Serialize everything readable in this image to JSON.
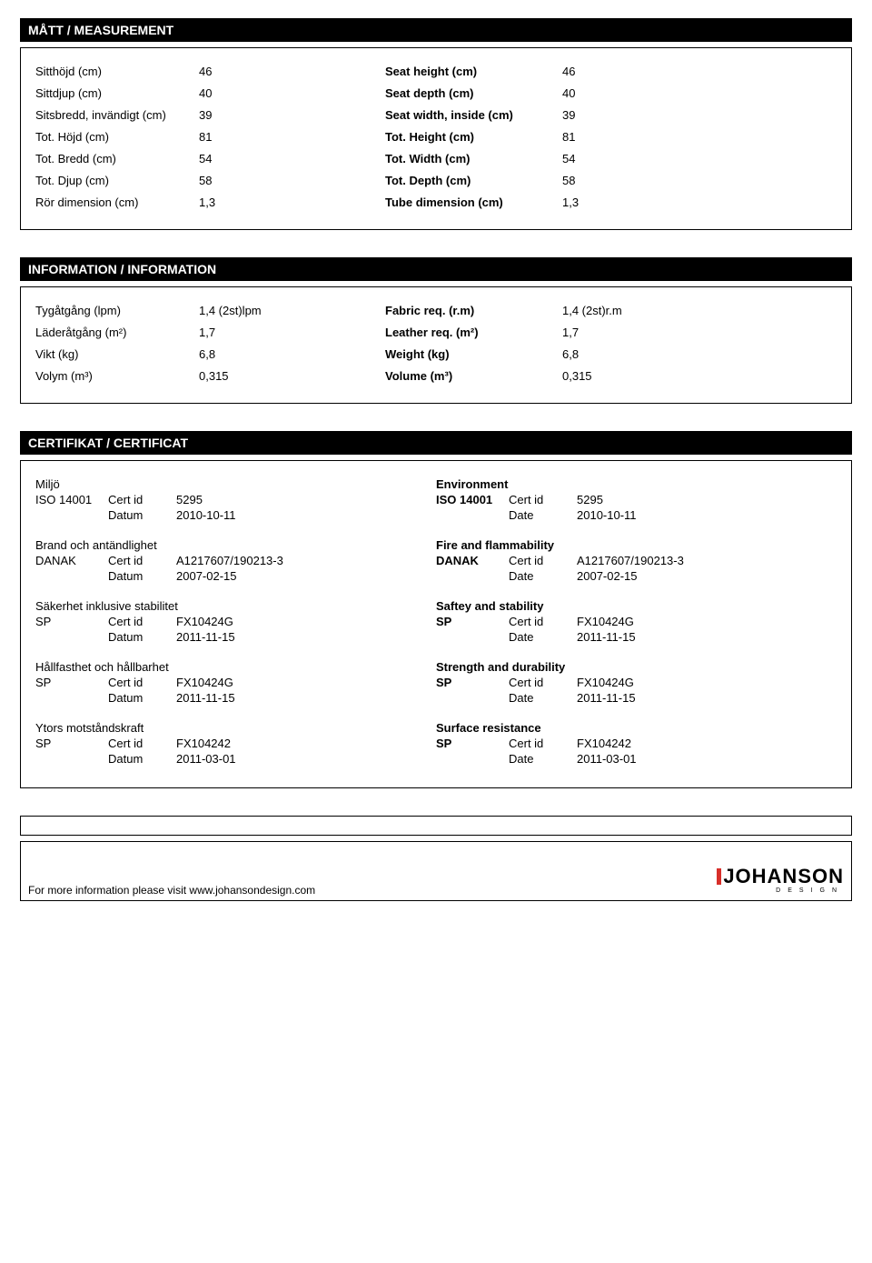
{
  "sections": {
    "measurement_title": "MÅTT / MEASUREMENT",
    "information_title": "INFORMATION / INFORMATION",
    "certificate_title": "CERTIFIKAT / CERTIFICAT"
  },
  "measurements": [
    {
      "sv": "Sitthöjd (cm)",
      "sv_val": "46",
      "en": "Seat height (cm)",
      "en_val": "46"
    },
    {
      "sv": "Sittdjup (cm)",
      "sv_val": "40",
      "en": "Seat depth (cm)",
      "en_val": "40"
    },
    {
      "sv": "Sitsbredd, invändigt (cm)",
      "sv_val": "39",
      "en": "Seat width, inside (cm)",
      "en_val": "39"
    },
    {
      "sv": "Tot. Höjd (cm)",
      "sv_val": "81",
      "en": "Tot. Height (cm)",
      "en_val": "81"
    },
    {
      "sv": "Tot. Bredd (cm)",
      "sv_val": "54",
      "en": "Tot. Width (cm)",
      "en_val": "54"
    },
    {
      "sv": "Tot. Djup (cm)",
      "sv_val": "58",
      "en": "Tot. Depth (cm)",
      "en_val": "58"
    },
    {
      "sv": "Rör dimension (cm)",
      "sv_val": "1,3",
      "en": "Tube dimension (cm)",
      "en_val": "1,3"
    }
  ],
  "information": [
    {
      "sv": "Tygåtgång (lpm)",
      "sv_val": "1,4 (2st)lpm",
      "en": "Fabric req. (r.m)",
      "en_val": "1,4 (2st)r.m"
    },
    {
      "sv": "Läderåtgång (m²)",
      "sv_val": "1,7",
      "en": "Leather req. (m²)",
      "en_val": "1,7"
    },
    {
      "sv": "Vikt (kg)",
      "sv_val": "6,8",
      "en": "Weight (kg)",
      "en_val": "6,8"
    },
    {
      "sv": "Volym (m³)",
      "sv_val": "0,315",
      "en": "Volume (m³)",
      "en_val": "0,315"
    }
  ],
  "cert_labels": {
    "cert_id": "Cert id",
    "datum": "Datum",
    "date": "Date"
  },
  "cert_sv": [
    {
      "title": "Miljö",
      "org": "ISO 14001",
      "cert": "5295",
      "date": "2010-10-11"
    },
    {
      "title": "Brand och antändlighet",
      "org": "DANAK",
      "cert": "A1217607/190213-3",
      "date": "2007-02-15"
    },
    {
      "title": "Säkerhet inklusive stabilitet",
      "org": "SP",
      "cert": "FX10424G",
      "date": "2011-11-15"
    },
    {
      "title": "Hållfasthet och hållbarhet",
      "org": "SP",
      "cert": "FX10424G",
      "date": "2011-11-15"
    },
    {
      "title": "Ytors motståndskraft",
      "org": "SP",
      "cert": "FX104242",
      "date": "2011-03-01"
    }
  ],
  "cert_en": [
    {
      "title": "Environment",
      "org": "ISO 14001",
      "cert": "5295",
      "date": "2010-10-11"
    },
    {
      "title": "Fire and flammability",
      "org": "DANAK",
      "cert": "A1217607/190213-3",
      "date": "2007-02-15"
    },
    {
      "title": "Saftey and stability",
      "org": "SP",
      "cert": "FX10424G",
      "date": "2011-11-15"
    },
    {
      "title": "Strength and durability",
      "org": "SP",
      "cert": "FX10424G",
      "date": "2011-11-15"
    },
    {
      "title": "Surface resistance",
      "org": "SP",
      "cert": "FX104242",
      "date": "2011-03-01"
    }
  ],
  "footer": {
    "text": "For more information please visit www.johansondesign.com",
    "logo_main": "JOHANSON",
    "logo_sub": "DESIGN"
  }
}
